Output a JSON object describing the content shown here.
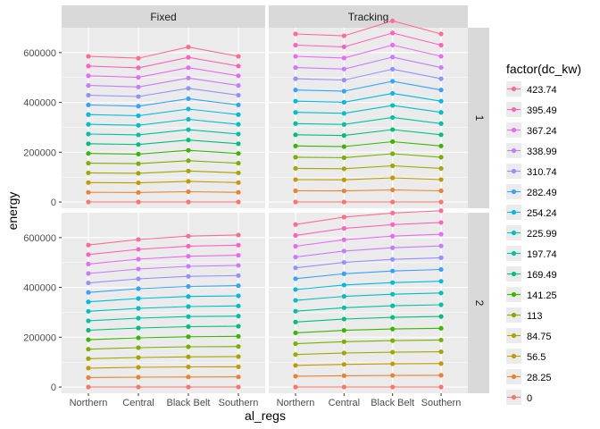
{
  "chart_data": {
    "type": "line",
    "xlabel": "al_regs",
    "ylabel": "energy",
    "x": [
      "Northern",
      "Central",
      "Black Belt",
      "Southern"
    ],
    "ylim": [
      -25000,
      700000
    ],
    "y_ticks": [
      0,
      200000,
      400000,
      600000
    ],
    "y_tick_labels": [
      "0",
      "200000",
      "400000",
      "600000"
    ],
    "grid": true,
    "legend": {
      "title": "factor(dc_kw)",
      "position": "right",
      "entries": [
        "423.74",
        "395.49",
        "367.24",
        "338.99",
        "310.74",
        "282.49",
        "254.24",
        "225.99",
        "197.74",
        "169.49",
        "141.25",
        "113",
        "84.75",
        "56.5",
        "28.25",
        "0"
      ]
    },
    "colors": [
      "#F8766D",
      "#EA8331",
      "#D89000",
      "#C09B00",
      "#A3A500",
      "#7CAE00",
      "#39B600",
      "#00BB4E",
      "#00BF7D",
      "#00C1A3",
      "#00BFC4",
      "#00BAE0",
      "#00B0F6",
      "#35A2FF",
      "#9590FF",
      "#C77CFF",
      "#E76BF3",
      "#FA62DB",
      "#FF62BC",
      "#FF6C91"
    ],
    "col_facets": [
      "Fixed",
      "Tracking"
    ],
    "row_facets": [
      "1",
      "2"
    ],
    "panels": [
      {
        "col": "Fixed",
        "row": "1",
        "series": [
          {
            "name": "0",
            "values": [
              0,
              0,
              0,
              0
            ]
          },
          {
            "name": "28.25",
            "values": [
              39000,
              38500,
              41500,
              39000
            ]
          },
          {
            "name": "56.5",
            "values": [
              78000,
              77000,
              83000,
              78000
            ]
          },
          {
            "name": "84.75",
            "values": [
              117000,
              115500,
              124500,
              117000
            ]
          },
          {
            "name": "113",
            "values": [
              156000,
              154000,
              166000,
              156000
            ]
          },
          {
            "name": "141.25",
            "values": [
              195000,
              192500,
              207500,
              195000
            ]
          },
          {
            "name": "169.49",
            "values": [
              234000,
              231000,
              249000,
              234000
            ]
          },
          {
            "name": "197.74",
            "values": [
              273000,
              269500,
              290500,
              273000
            ]
          },
          {
            "name": "225.99",
            "values": [
              312000,
              308000,
              332000,
              312000
            ]
          },
          {
            "name": "254.24",
            "values": [
              351000,
              346500,
              373500,
              351000
            ]
          },
          {
            "name": "282.49",
            "values": [
              390000,
              385000,
              415000,
              390000
            ]
          },
          {
            "name": "310.74",
            "values": [
              429000,
              423500,
              456500,
              429000
            ]
          },
          {
            "name": "338.99",
            "values": [
              468000,
              462000,
              498000,
              468000
            ]
          },
          {
            "name": "367.24",
            "values": [
              507000,
              500500,
              539500,
              507000
            ]
          },
          {
            "name": "395.49",
            "values": [
              546000,
              539000,
              581000,
              546000
            ]
          },
          {
            "name": "423.74",
            "values": [
              585000,
              577500,
              622500,
              585000
            ]
          }
        ]
      },
      {
        "col": "Tracking",
        "row": "1",
        "series": [
          {
            "name": "0",
            "values": [
              0,
              0,
              0,
              0
            ]
          },
          {
            "name": "28.25",
            "values": [
              45000,
              44500,
              48500,
              45000
            ]
          },
          {
            "name": "56.5",
            "values": [
              90000,
              89000,
              97000,
              90000
            ]
          },
          {
            "name": "84.75",
            "values": [
              135000,
              133500,
              145500,
              135000
            ]
          },
          {
            "name": "113",
            "values": [
              180000,
              178000,
              194000,
              180000
            ]
          },
          {
            "name": "141.25",
            "values": [
              225000,
              222500,
              242500,
              225000
            ]
          },
          {
            "name": "169.49",
            "values": [
              270000,
              267000,
              291000,
              270000
            ]
          },
          {
            "name": "197.74",
            "values": [
              315000,
              311500,
              339500,
              315000
            ]
          },
          {
            "name": "225.99",
            "values": [
              360000,
              356000,
              388000,
              360000
            ]
          },
          {
            "name": "254.24",
            "values": [
              405000,
              400500,
              436500,
              405000
            ]
          },
          {
            "name": "282.49",
            "values": [
              450000,
              445000,
              485000,
              450000
            ]
          },
          {
            "name": "310.74",
            "values": [
              495000,
              489500,
              533500,
              495000
            ]
          },
          {
            "name": "338.99",
            "values": [
              540000,
              534000,
              582000,
              540000
            ]
          },
          {
            "name": "367.24",
            "values": [
              585000,
              578500,
              630500,
              585000
            ]
          },
          {
            "name": "395.49",
            "values": [
              630000,
              623000,
              679000,
              630000
            ]
          },
          {
            "name": "423.74",
            "values": [
              675000,
              667500,
              727500,
              675000
            ]
          }
        ]
      },
      {
        "col": "Fixed",
        "row": "2",
        "series": [
          {
            "name": "0",
            "values": [
              0,
              0,
              0,
              0
            ]
          },
          {
            "name": "28.25",
            "values": [
              38000,
              39500,
              40400,
              40700
            ]
          },
          {
            "name": "56.5",
            "values": [
              76000,
              79000,
              80800,
              81400
            ]
          },
          {
            "name": "84.75",
            "values": [
              114000,
              118500,
              121200,
              122100
            ]
          },
          {
            "name": "113",
            "values": [
              152000,
              158000,
              161600,
              162800
            ]
          },
          {
            "name": "141.25",
            "values": [
              190000,
              197500,
              202000,
              203500
            ]
          },
          {
            "name": "169.49",
            "values": [
              228000,
              237000,
              242400,
              244200
            ]
          },
          {
            "name": "197.74",
            "values": [
              266000,
              276500,
              282800,
              284900
            ]
          },
          {
            "name": "225.99",
            "values": [
              304000,
              316000,
              323200,
              325600
            ]
          },
          {
            "name": "254.24",
            "values": [
              342000,
              355500,
              363600,
              366300
            ]
          },
          {
            "name": "282.49",
            "values": [
              380000,
              395000,
              404000,
              407000
            ]
          },
          {
            "name": "310.74",
            "values": [
              418000,
              434500,
              444400,
              447700
            ]
          },
          {
            "name": "338.99",
            "values": [
              456000,
              474000,
              484800,
              488400
            ]
          },
          {
            "name": "367.24",
            "values": [
              494000,
              513500,
              525200,
              529100
            ]
          },
          {
            "name": "395.49",
            "values": [
              532000,
              553000,
              565600,
              569800
            ]
          },
          {
            "name": "423.74",
            "values": [
              570000,
              592500,
              606000,
              610500
            ]
          }
        ]
      },
      {
        "col": "Tracking",
        "row": "2",
        "series": [
          {
            "name": "0",
            "values": [
              0,
              0,
              0,
              0
            ]
          },
          {
            "name": "28.25",
            "values": [
              43500,
              45500,
              46600,
              47200
            ]
          },
          {
            "name": "56.5",
            "values": [
              87000,
              91000,
              93200,
              94400
            ]
          },
          {
            "name": "84.75",
            "values": [
              130500,
              136500,
              139800,
              141600
            ]
          },
          {
            "name": "113",
            "values": [
              174000,
              182000,
              186400,
              188800
            ]
          },
          {
            "name": "141.25",
            "values": [
              217500,
              227500,
              233000,
              236000
            ]
          },
          {
            "name": "169.49",
            "values": [
              261000,
              273000,
              279600,
              283200
            ]
          },
          {
            "name": "197.74",
            "values": [
              304500,
              318500,
              326200,
              330400
            ]
          },
          {
            "name": "225.99",
            "values": [
              348000,
              364000,
              372800,
              377600
            ]
          },
          {
            "name": "254.24",
            "values": [
              391500,
              409500,
              419400,
              424800
            ]
          },
          {
            "name": "282.49",
            "values": [
              435000,
              455000,
              466000,
              472000
            ]
          },
          {
            "name": "310.74",
            "values": [
              478500,
              500500,
              512600,
              519200
            ]
          },
          {
            "name": "338.99",
            "values": [
              522000,
              546000,
              559200,
              566400
            ]
          },
          {
            "name": "367.24",
            "values": [
              565500,
              591500,
              605800,
              613600
            ]
          },
          {
            "name": "395.49",
            "values": [
              609000,
              637000,
              652400,
              660800
            ]
          },
          {
            "name": "423.74",
            "values": [
              652500,
              682500,
              699000,
              708000
            ]
          }
        ]
      }
    ]
  }
}
